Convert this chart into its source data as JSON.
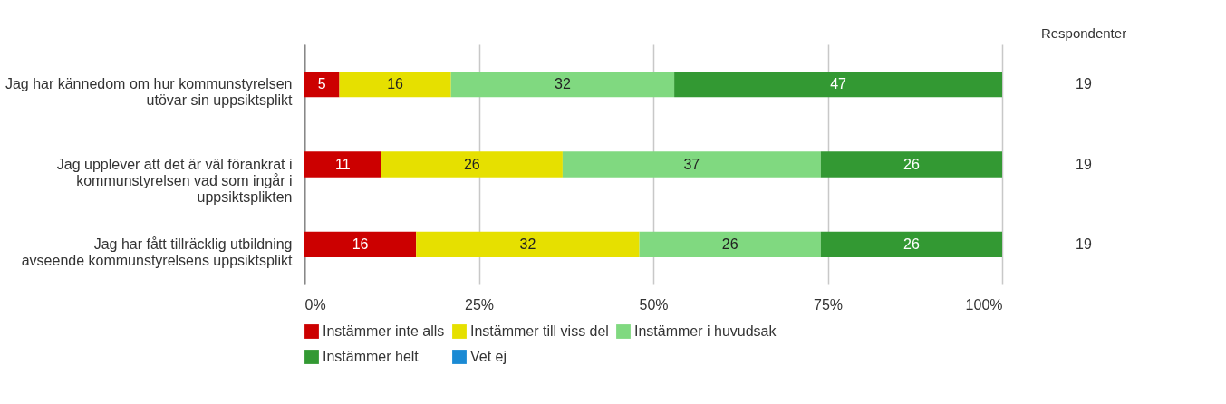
{
  "chart_data": {
    "type": "bar",
    "orientation": "horizontal",
    "stacked": true,
    "data_labels": true,
    "grid": "x",
    "legend": "bottom",
    "categories": [
      "Jag har kännedom om hur kommunstyrelsen utövar sin uppsiktsplikt",
      "Jag upplever att det är väl förankrat i kommunstyrelsen vad som ingår i uppsiktsplikten",
      "Jag har fått tillräcklig utbildning avseende kommunstyrelsens uppsiktsplikt"
    ],
    "xlim": [
      0,
      100
    ],
    "xticks": [
      {
        "value": 0,
        "label": "0%"
      },
      {
        "value": 25,
        "label": "25%"
      },
      {
        "value": 50,
        "label": "50%"
      },
      {
        "value": 75,
        "label": "75%"
      },
      {
        "value": 100,
        "label": "100%"
      }
    ],
    "series": [
      {
        "name": "Instämmer inte alls",
        "color": "#cc0000",
        "values": [
          5,
          11,
          16
        ]
      },
      {
        "name": "Instämmer till viss del",
        "color": "#e6e000",
        "values": [
          16,
          26,
          32
        ]
      },
      {
        "name": "Instämmer i huvudsak",
        "color": "#80d980",
        "values": [
          32,
          37,
          26
        ]
      },
      {
        "name": "Instämmer helt",
        "color": "#339933",
        "values": [
          47,
          26,
          26
        ]
      },
      {
        "name": "Vet ej",
        "color": "#1a8ad4",
        "values": [
          null,
          null,
          null
        ]
      }
    ],
    "annotations": [
      "Respondenter",
      "19",
      "19",
      "19"
    ]
  }
}
